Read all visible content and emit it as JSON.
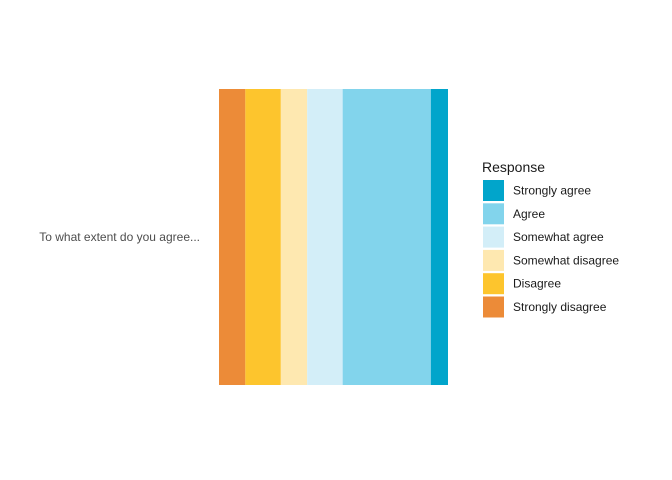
{
  "chart_data": {
    "type": "bar",
    "orientation": "horizontal",
    "stacked": true,
    "percent_scale": true,
    "categories": [
      "To what extent do you agree..."
    ],
    "series": [
      {
        "name": "Strongly disagree",
        "color": "#EC8B38",
        "values": [
          11.5
        ]
      },
      {
        "name": "Disagree",
        "color": "#FDC52D",
        "values": [
          15.5
        ]
      },
      {
        "name": "Somewhat disagree",
        "color": "#FEE8B0",
        "values": [
          11.5
        ]
      },
      {
        "name": "Somewhat agree",
        "color": "#D3EEF8",
        "values": [
          15.5
        ]
      },
      {
        "name": "Agree",
        "color": "#82D4EC",
        "values": [
          38.5
        ]
      },
      {
        "name": "Strongly agree",
        "color": "#01A5CB",
        "values": [
          7.5
        ]
      }
    ],
    "xlim": [
      0,
      100
    ],
    "xlabel": "",
    "ylabel": "",
    "grid": false,
    "axis_ticks_visible": false,
    "legend": {
      "title": "Response",
      "placement": "right",
      "order": [
        "Strongly agree",
        "Agree",
        "Somewhat agree",
        "Somewhat disagree",
        "Disagree",
        "Strongly disagree"
      ]
    }
  }
}
